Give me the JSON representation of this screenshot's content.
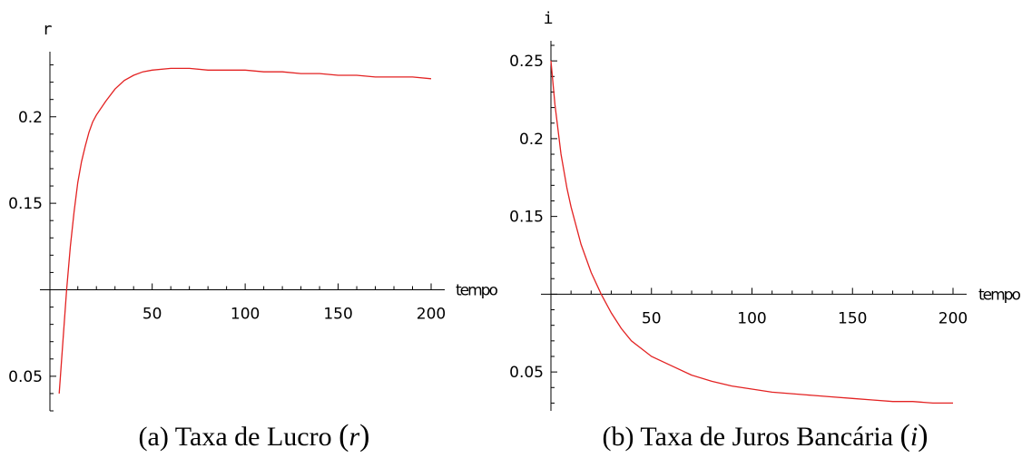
{
  "chart_data": [
    {
      "type": "line",
      "ylabel": "r",
      "xlabel": "tempo",
      "xlim": [
        -5,
        200
      ],
      "ylim": [
        0.03,
        0.235
      ],
      "x_axis_at_y": 0.1,
      "x_ticks": [
        50,
        100,
        150,
        200
      ],
      "y_ticks": [
        0.05,
        0.15,
        0.2
      ],
      "color": "#e32222",
      "x": [
        0,
        2,
        4,
        6,
        8,
        10,
        12,
        14,
        16,
        18,
        20,
        25,
        30,
        35,
        40,
        45,
        50,
        60,
        70,
        80,
        90,
        100,
        110,
        120,
        130,
        140,
        150,
        160,
        170,
        180,
        190,
        200
      ],
      "y": [
        0.04,
        0.07,
        0.1,
        0.125,
        0.145,
        0.162,
        0.174,
        0.183,
        0.191,
        0.197,
        0.201,
        0.209,
        0.216,
        0.221,
        0.224,
        0.226,
        0.227,
        0.228,
        0.228,
        0.227,
        0.227,
        0.227,
        0.226,
        0.226,
        0.225,
        0.225,
        0.224,
        0.224,
        0.223,
        0.223,
        0.223,
        0.222
      ],
      "caption_prefix": "(a) Taxa de Lucro",
      "caption_var": "r"
    },
    {
      "type": "line",
      "ylabel": "i",
      "xlabel": "tempo",
      "xlim": [
        0,
        200
      ],
      "ylim": [
        0.025,
        0.26
      ],
      "x_axis_at_y": 0.1,
      "x_ticks": [
        50,
        100,
        150,
        200
      ],
      "y_ticks": [
        0.05,
        0.15,
        0.2,
        0.25
      ],
      "color": "#e32222",
      "x": [
        0,
        2,
        5,
        8,
        10,
        15,
        20,
        25,
        30,
        35,
        40,
        45,
        50,
        60,
        70,
        80,
        90,
        100,
        110,
        120,
        130,
        140,
        150,
        160,
        170,
        180,
        190,
        200
      ],
      "y": [
        0.25,
        0.222,
        0.19,
        0.168,
        0.156,
        0.132,
        0.114,
        0.1,
        0.088,
        0.078,
        0.07,
        0.065,
        0.06,
        0.054,
        0.048,
        0.044,
        0.041,
        0.039,
        0.037,
        0.036,
        0.035,
        0.034,
        0.033,
        0.032,
        0.031,
        0.031,
        0.03,
        0.03
      ],
      "caption_prefix": "(b) Taxa de Juros Bancária",
      "caption_var": "i"
    }
  ]
}
